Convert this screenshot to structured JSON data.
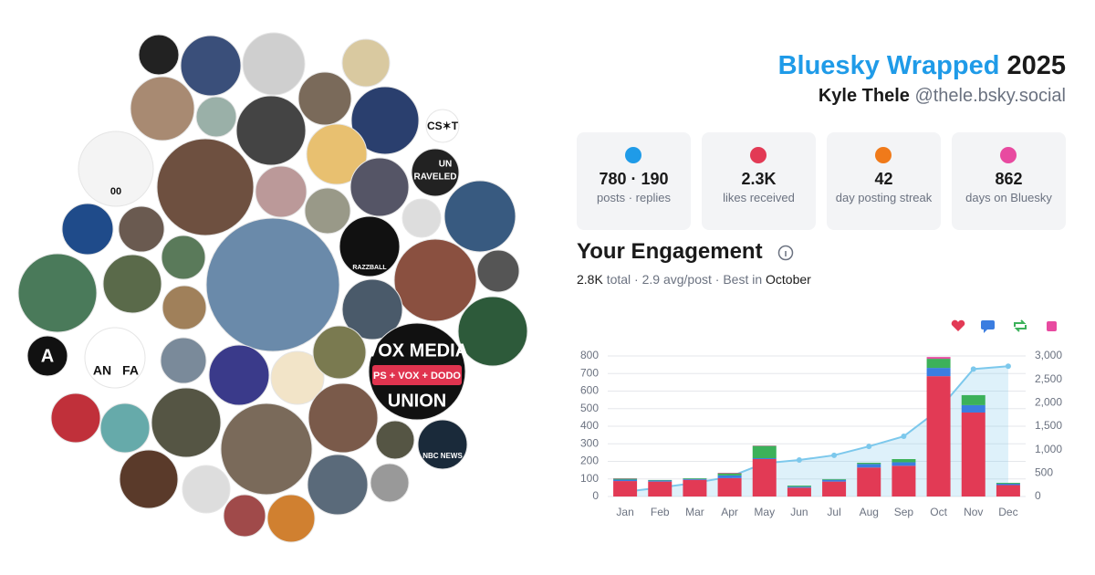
{
  "header": {
    "brand": "Bluesky Wrapped",
    "year": "2025",
    "name": "Kyle Thele",
    "handle": "@thele.bsky.social"
  },
  "stats": [
    {
      "value": "780 · 190",
      "label": "posts · replies"
    },
    {
      "value": "2.3K",
      "label": "likes received"
    },
    {
      "value": "42",
      "label": "day posting streak"
    },
    {
      "value": "862",
      "label": "days on Bluesky"
    }
  ],
  "engagement": {
    "title": "Your Engagement",
    "total": "2.8K",
    "middle": "total · 2.9 avg/post · Best in",
    "best": "October"
  },
  "avatar_texts": [
    "CS✶T",
    "UN",
    "RAVELED",
    "RAZZBALL",
    "VOX MEDIA",
    "PS + VOX + DODO",
    "UNION",
    "NBC NEWS",
    "A",
    "AN",
    "FA",
    "00"
  ],
  "chart_data": {
    "type": "bar",
    "stacked": true,
    "categories": [
      "Jan",
      "Feb",
      "Mar",
      "Apr",
      "May",
      "Jun",
      "Jul",
      "Aug",
      "Sep",
      "Oct",
      "Nov",
      "Dec"
    ],
    "series": [
      {
        "color": "#e23a55",
        "values": [
          88,
          85,
          95,
          105,
          213,
          50,
          85,
          165,
          175,
          685,
          478,
          65
        ]
      },
      {
        "color": "#3b7de0",
        "values": [
          8,
          6,
          5,
          15,
          5,
          6,
          10,
          20,
          20,
          47,
          42,
          8
        ]
      },
      {
        "color": "#3cb15a",
        "values": [
          6,
          3,
          4,
          12,
          70,
          6,
          4,
          7,
          18,
          52,
          57,
          5
        ]
      },
      {
        "color": "#e84aa0",
        "values": [
          2,
          0,
          0,
          3,
          2,
          0,
          0,
          0,
          0,
          10,
          0,
          0
        ]
      },
      {
        "type": "line",
        "axis": "y2",
        "color": "#7cc8ec",
        "values": [
          100,
          190,
          290,
          420,
          710,
          780,
          880,
          1070,
          1285,
          1850,
          2720,
          2780
        ]
      }
    ],
    "ylim": [
      0,
      800
    ],
    "yticks": [
      0,
      100,
      200,
      300,
      400,
      500,
      600,
      700,
      800
    ],
    "y2lim": [
      0,
      3000
    ],
    "y2ticks": [
      0,
      500,
      {
        "value": 1000,
        "label": "1,000"
      },
      {
        "value": 1500,
        "label": "1,500"
      },
      {
        "value": 2000,
        "label": "2,000"
      },
      {
        "value": 2500,
        "label": "2,500"
      },
      {
        "value": 3000,
        "label": "3,000"
      }
    ],
    "grid": true
  }
}
